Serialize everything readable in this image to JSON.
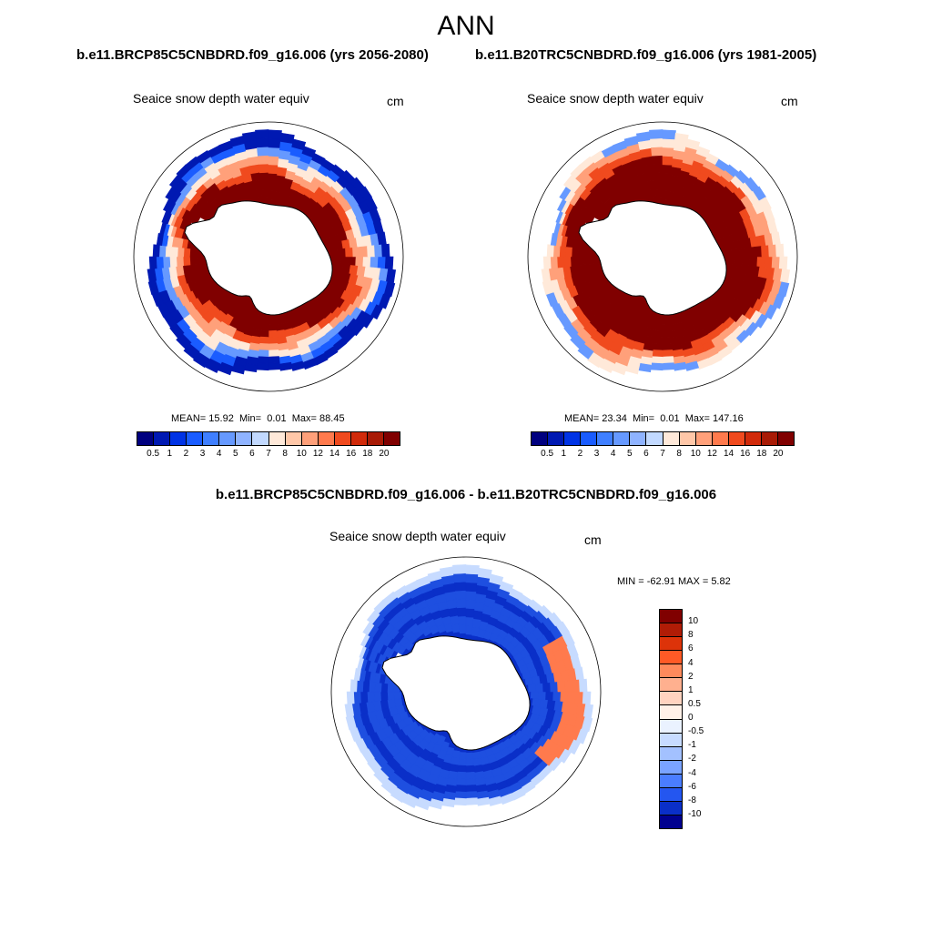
{
  "season": "ANN",
  "panels": [
    {
      "case_title": "b.e11.BRCP85C5CNBDRD.f09_g16.006 (yrs 2056-2080)",
      "field_label": "Seaice snow depth water equiv",
      "units": "cm",
      "stats": {
        "mean_label": "MEAN=",
        "mean": "15.92",
        "min_label": "Min=",
        "min": "0.01",
        "max_label": "Max=",
        "max": "88.45"
      }
    },
    {
      "case_title": "b.e11.B20TRC5CNBDRD.f09_g16.006 (yrs 1981-2005)",
      "field_label": "Seaice snow depth water equiv",
      "units": "cm",
      "stats": {
        "mean_label": "MEAN=",
        "mean": "23.34",
        "min_label": "Min=",
        "min": "0.01",
        "max_label": "Max=",
        "max": "147.16"
      }
    }
  ],
  "difference": {
    "title": "b.e11.BRCP85C5CNBDRD.f09_g16.006 - b.e11.B20TRC5CNBDRD.f09_g16.006",
    "field_label": "Seaice snow depth water equiv",
    "units": "cm",
    "minmax_text": "MIN = -62.91 MAX =   5.82"
  },
  "colorbar_main": {
    "labels": [
      "0.5",
      "1",
      "2",
      "3",
      "4",
      "5",
      "6",
      "7",
      "8",
      "10",
      "12",
      "14",
      "16",
      "18",
      "20"
    ],
    "colors": [
      "#00007f",
      "#0019b2",
      "#0033e5",
      "#1a5cff",
      "#3f7fff",
      "#6699ff",
      "#8fb3ff",
      "#c2d9ff",
      "#ffe9d9",
      "#ffc7a8",
      "#ffa07a",
      "#ff7a4d",
      "#f04a1e",
      "#d12a0a",
      "#a81b06",
      "#800000"
    ]
  },
  "colorbar_diff": {
    "labels": [
      "10",
      "8",
      "6",
      "4",
      "2",
      "1",
      "0.5",
      "0",
      "-0.5",
      "-1",
      "-2",
      "-4",
      "-6",
      "-8",
      "-10"
    ],
    "colors": [
      "#800000",
      "#b01c06",
      "#dd3309",
      "#ff5a26",
      "#ff8a5c",
      "#ffb08f",
      "#ffd3c0",
      "#fff1e8",
      "#eaf2ff",
      "#c7dbff",
      "#a3c1ff",
      "#7aa3ff",
      "#4a7dff",
      "#2456f0",
      "#0a2fc8",
      "#00008f"
    ]
  },
  "map_colors": {
    "land": "#ffffff",
    "coast": "#000000",
    "diff_background": "#1e4fe0",
    "diff_ring_dark": "#0a2fc8",
    "diff_light": "#c7dbff",
    "diff_positive": "#ff7a4d"
  }
}
